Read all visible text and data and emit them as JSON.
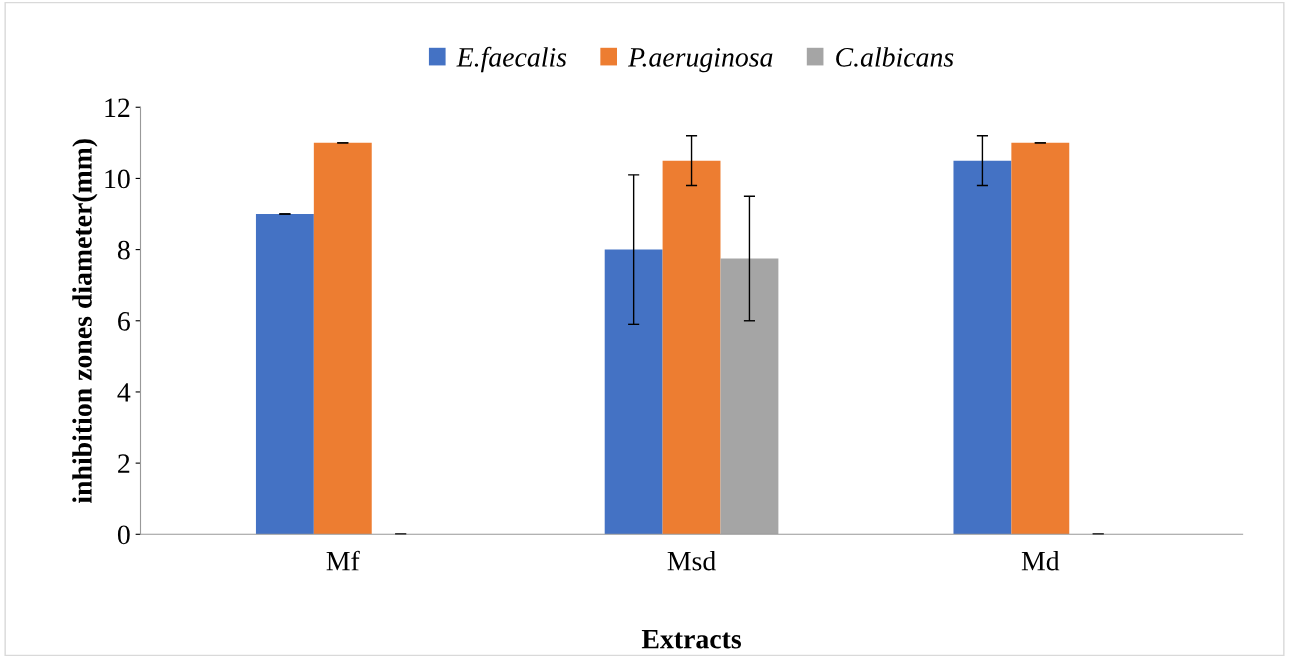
{
  "chart_data": {
    "type": "bar",
    "xlabel": "Extracts",
    "ylabel": "inhibition zones diameter(mm)",
    "categories": [
      "Mf",
      "Msd",
      "Md"
    ],
    "series": [
      {
        "name": "E.faecalis",
        "color": "#4472c4",
        "values": [
          9,
          8,
          10.5
        ],
        "errors": [
          0,
          2.1,
          0.7
        ]
      },
      {
        "name": "P.aeruginosa",
        "color": "#ed7d31",
        "values": [
          11,
          10.5,
          11
        ],
        "errors": [
          0,
          0.7,
          0
        ]
      },
      {
        "name": "C.albicans",
        "color": "#a5a5a5",
        "values": [
          0,
          7.75,
          0
        ],
        "errors": [
          0,
          1.75,
          0
        ]
      }
    ],
    "ylim": [
      0,
      12
    ],
    "yticks": [
      0,
      2,
      4,
      6,
      8,
      10,
      12
    ],
    "grid": false,
    "legend": "top"
  }
}
